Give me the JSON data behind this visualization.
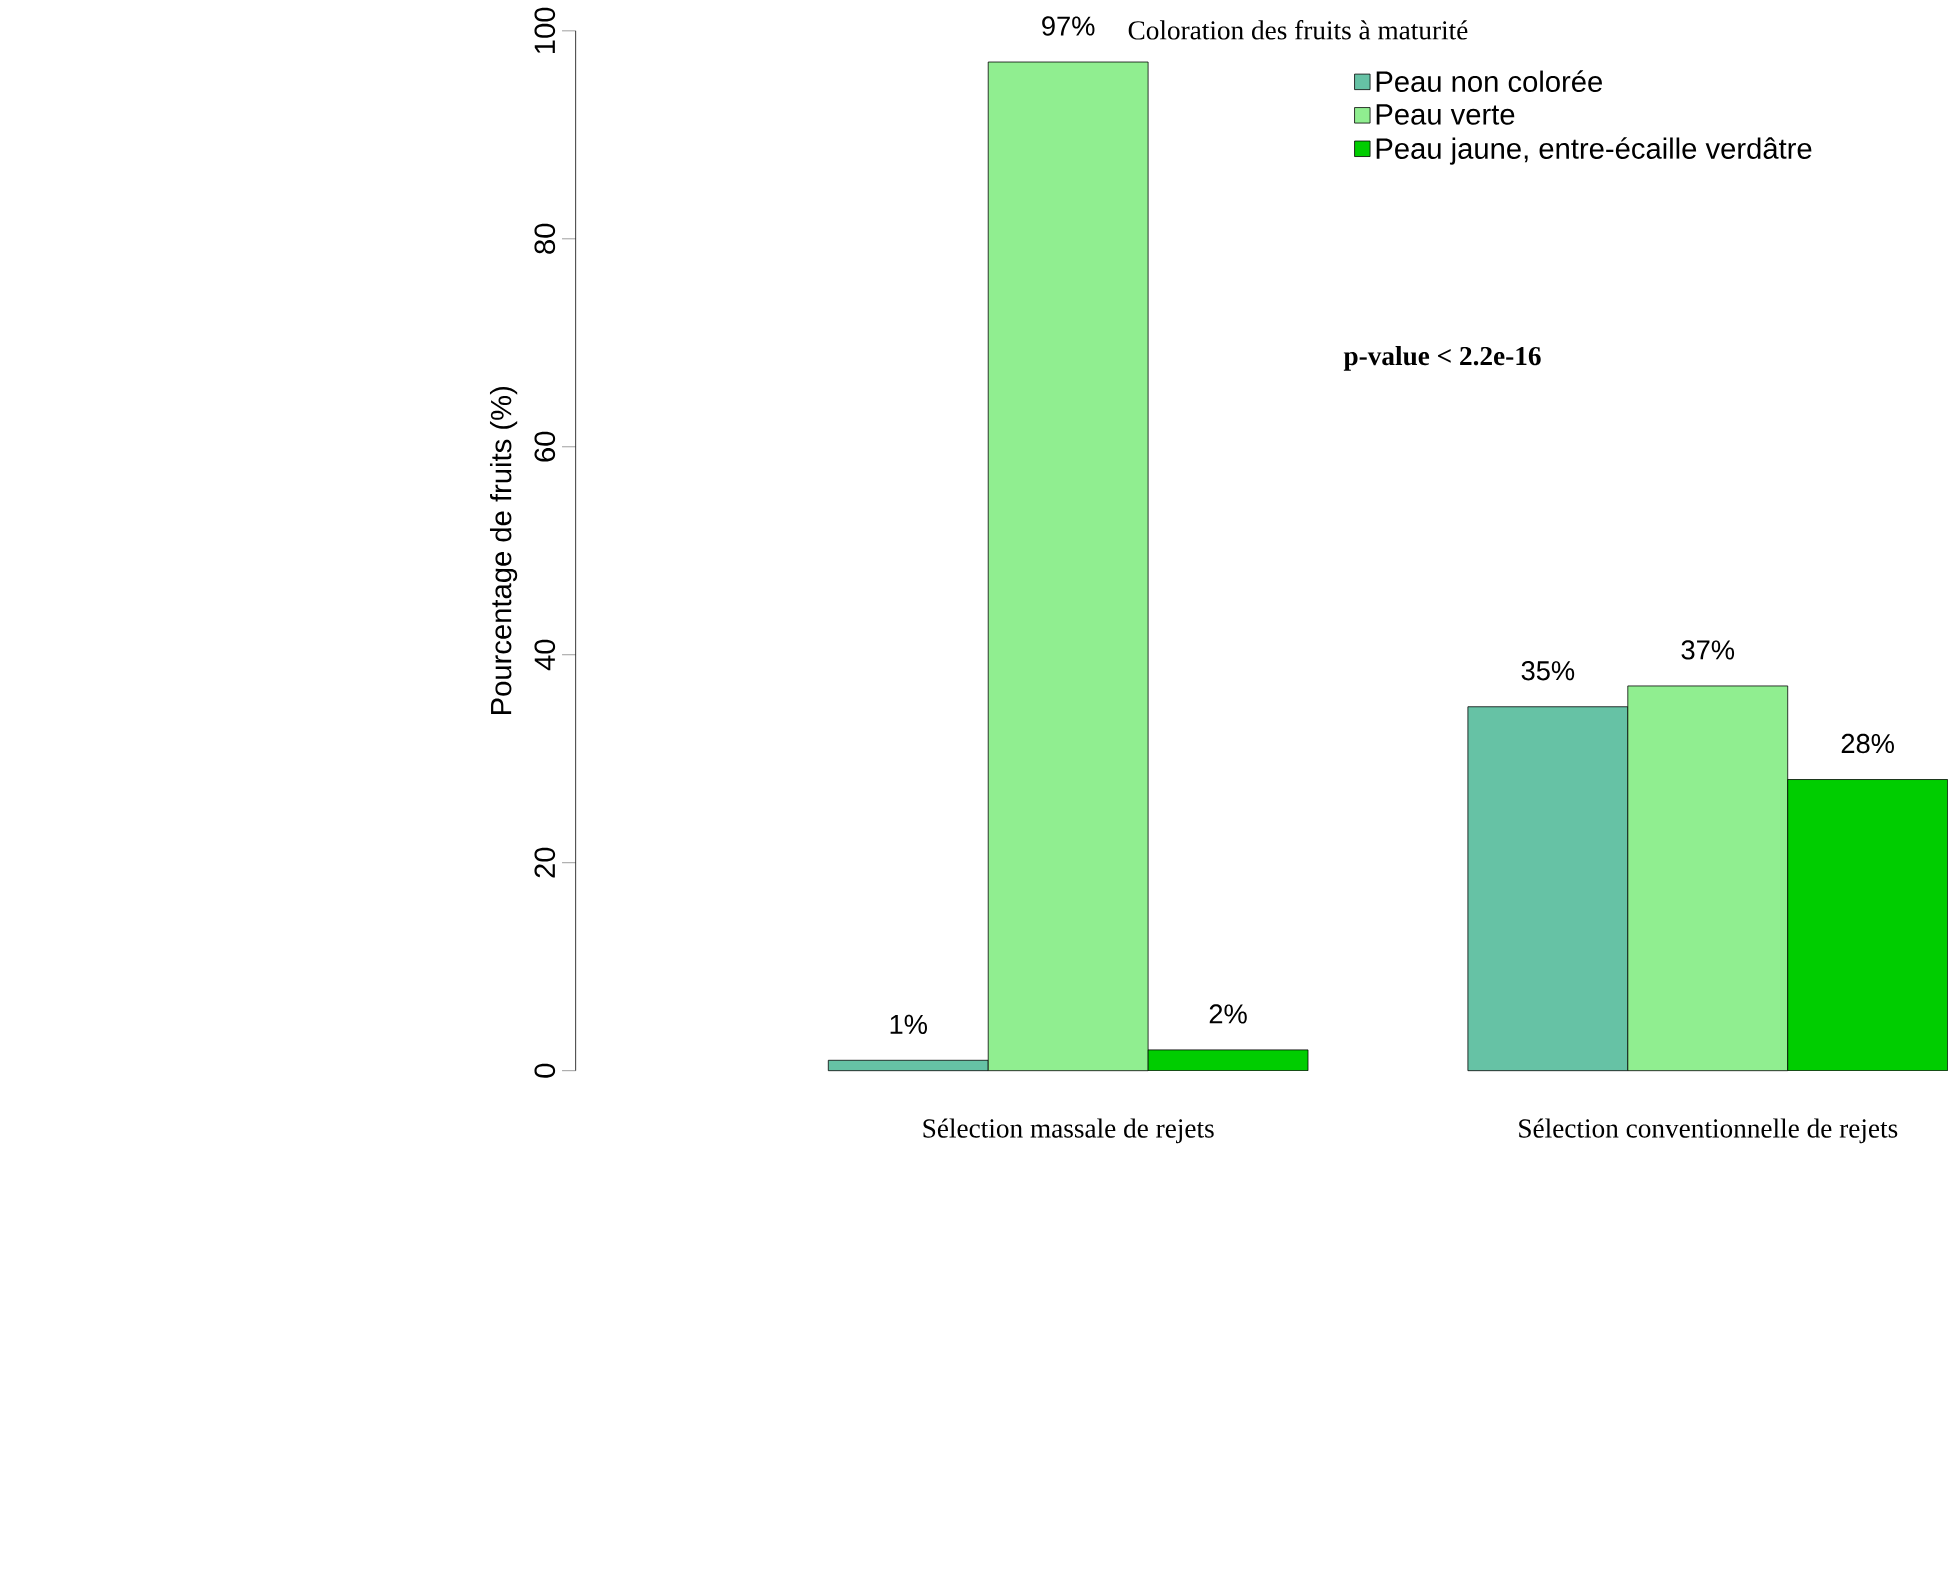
{
  "chart_data": {
    "type": "bar",
    "ylabel": "Pourcentage de fruits (%)",
    "legend_title": "Coloration des fruits à maturité",
    "legend": "top right",
    "categories": [
      "Sélection massale de rejets",
      "Sélection conventionnelle de rejets"
    ],
    "series": [
      {
        "name": "Peau non colorée",
        "color": "#66c2a5",
        "values": [
          1,
          35
        ],
        "value_labels": [
          "1%",
          "35%"
        ]
      },
      {
        "name": "Peau verte",
        "color": "#90ee90",
        "values": [
          97,
          37
        ],
        "value_labels": [
          "97%",
          "37%"
        ]
      },
      {
        "name": "Peau jaune, entre-écaille verdâtre",
        "color": "#00cd00",
        "values": [
          2,
          28
        ],
        "value_labels": [
          "2%",
          "28%"
        ]
      }
    ],
    "ylim": [
      0,
      100
    ],
    "yticks": [
      0,
      20,
      40,
      60,
      80,
      100
    ],
    "grid": false,
    "annotations": [
      "**p-value < 2.2e-16**"
    ]
  }
}
